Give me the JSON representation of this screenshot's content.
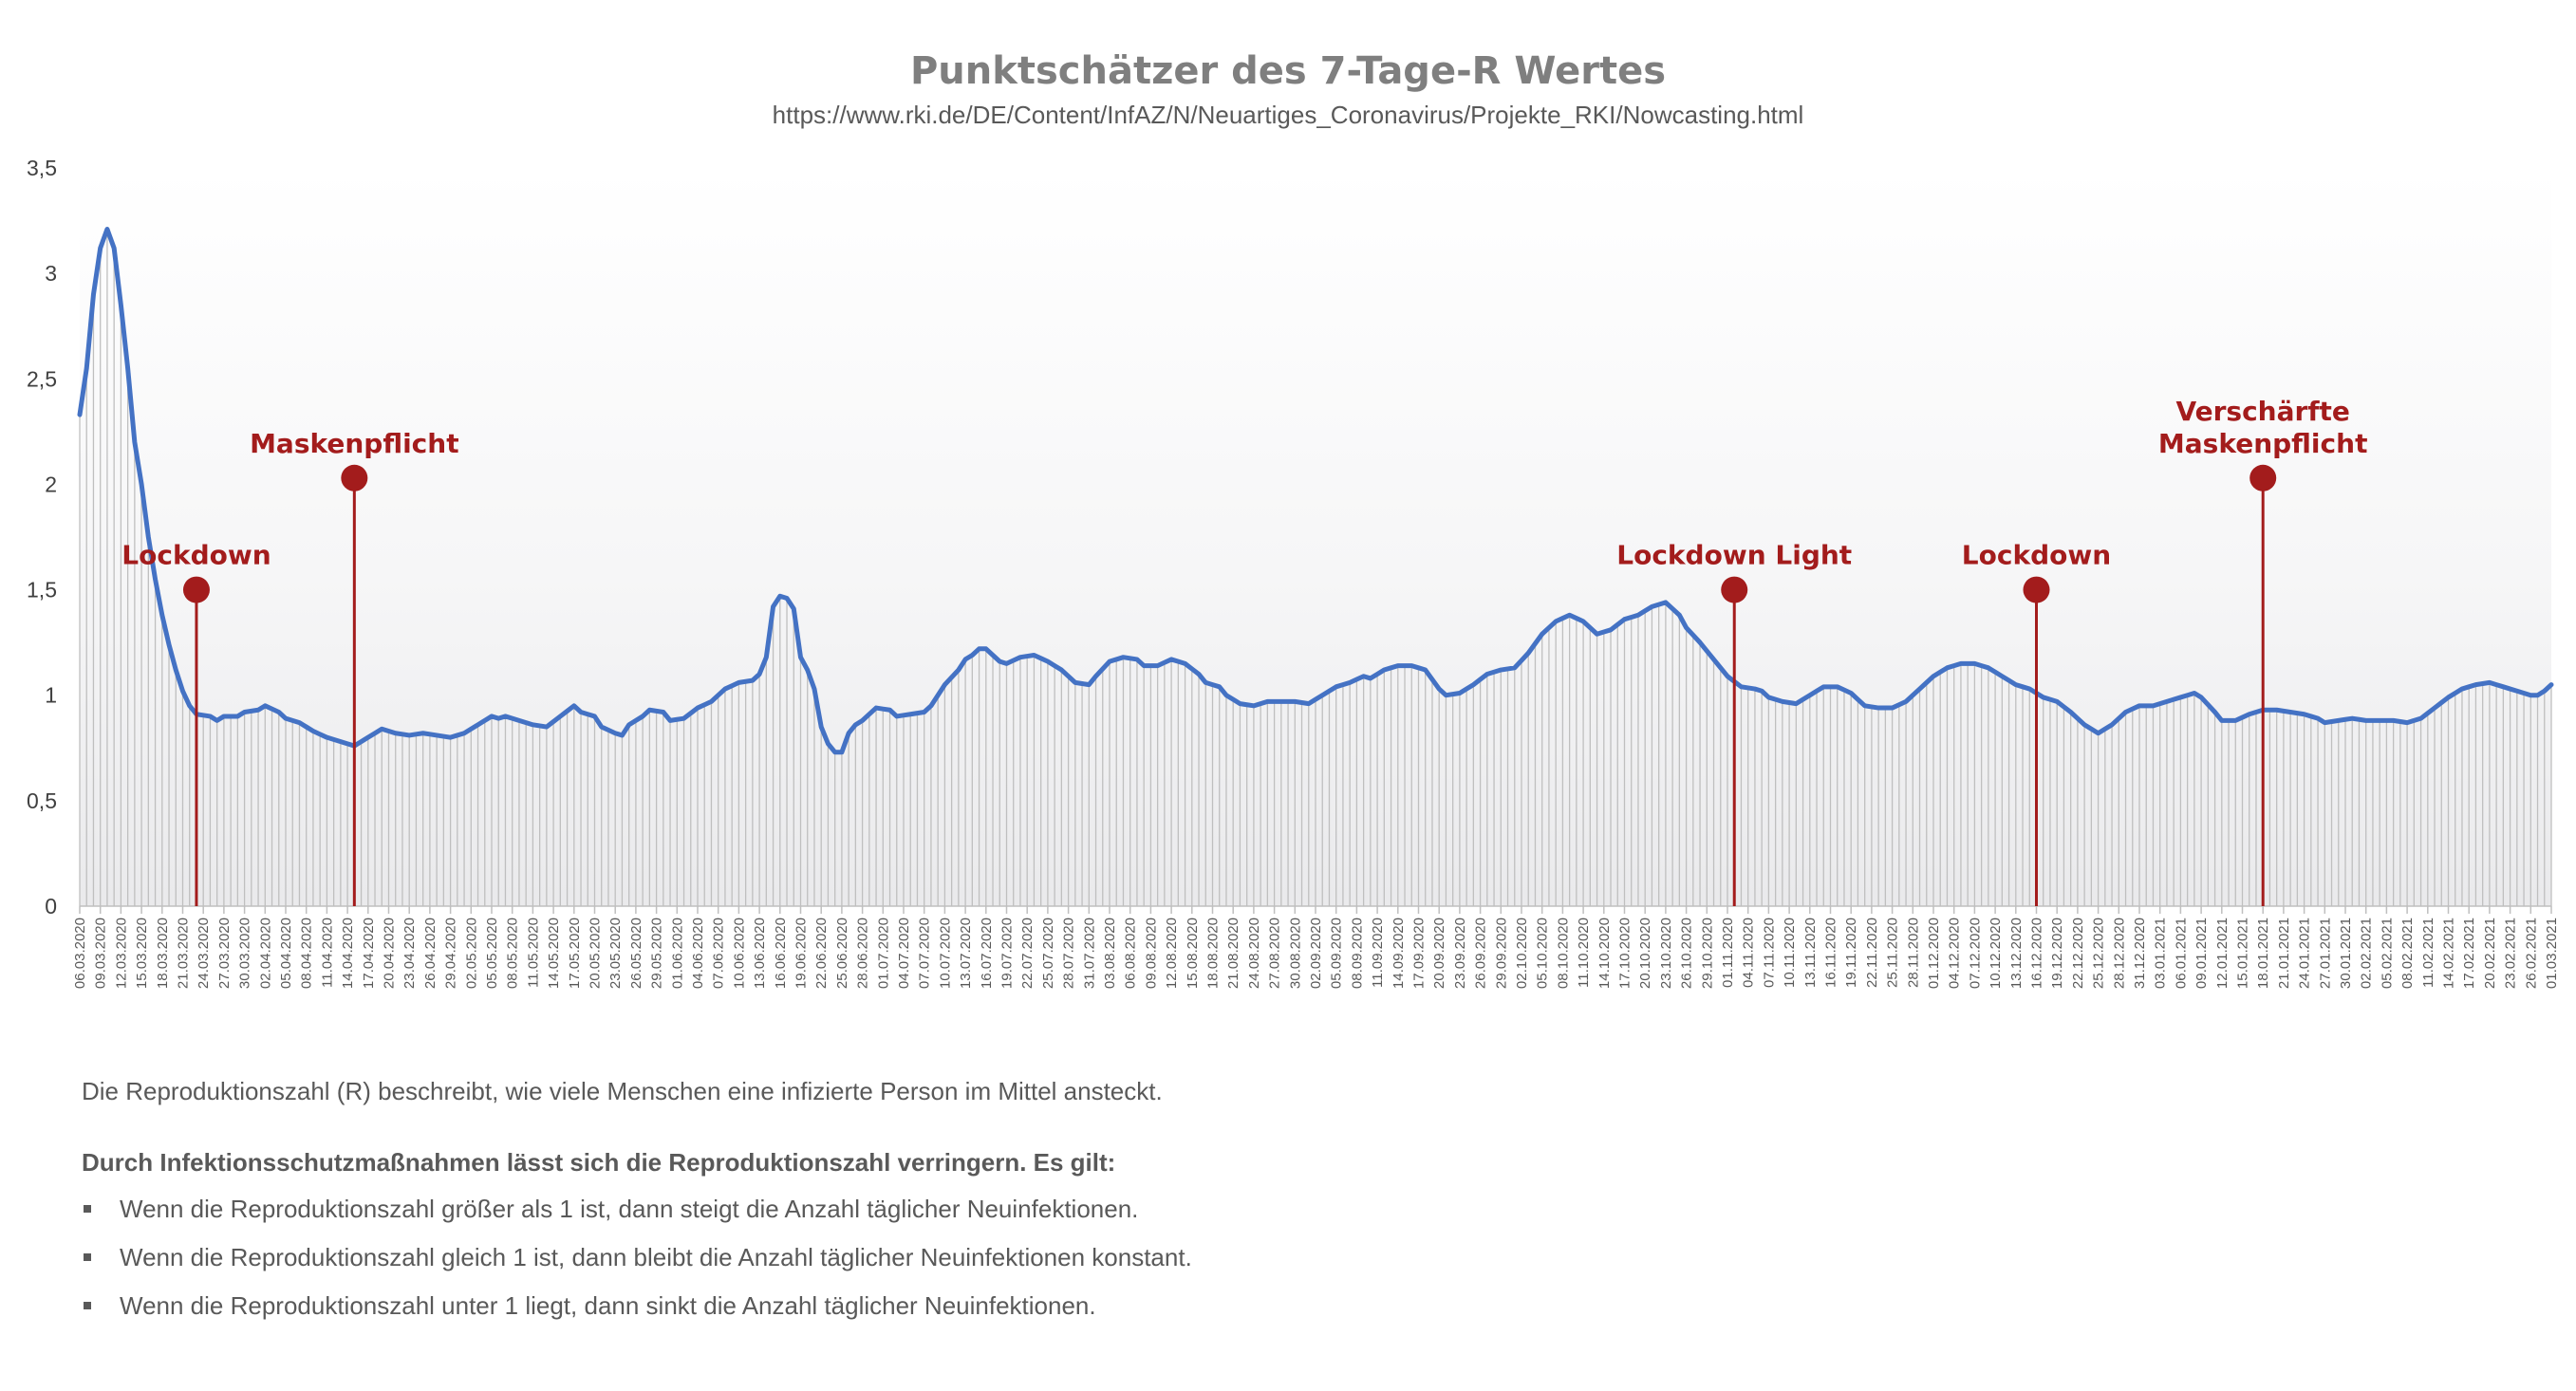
{
  "chart_data": {
    "type": "line",
    "title": "Punktschätzer des 7-Tage-R Wertes",
    "subtitle": "https://www.rki.de/DE/Content/InfAZ/N/Neuartiges_Coronavirus/Projekte_RKI/Nowcasting.html",
    "x_start": "06.03.2020",
    "x_end": "01.03.2021",
    "x_tick_labels": [
      "06.03.2020",
      "09.03.2020",
      "12.03.2020",
      "15.03.2020",
      "18.03.2020",
      "21.03.2020",
      "24.03.2020",
      "27.03.2020",
      "30.03.2020",
      "02.04.2020",
      "05.04.2020",
      "08.04.2020",
      "11.04.2020",
      "14.04.2020",
      "17.04.2020",
      "20.04.2020",
      "23.04.2020",
      "26.04.2020",
      "29.04.2020",
      "02.05.2020",
      "05.05.2020",
      "08.05.2020",
      "11.05.2020",
      "14.05.2020",
      "17.05.2020",
      "20.05.2020",
      "23.05.2020",
      "26.05.2020",
      "29.05.2020",
      "01.06.2020",
      "04.06.2020",
      "07.06.2020",
      "10.06.2020",
      "13.06.2020",
      "16.06.2020",
      "19.06.2020",
      "22.06.2020",
      "25.06.2020",
      "28.06.2020",
      "01.07.2020",
      "04.07.2020",
      "07.07.2020",
      "10.07.2020",
      "13.07.2020",
      "16.07.2020",
      "19.07.2020",
      "22.07.2020",
      "25.07.2020",
      "28.07.2020",
      "31.07.2020",
      "03.08.2020",
      "06.08.2020",
      "09.08.2020",
      "12.08.2020",
      "15.08.2020",
      "18.08.2020",
      "21.08.2020",
      "24.08.2020",
      "27.08.2020",
      "30.08.2020",
      "02.09.2020",
      "05.09.2020",
      "08.09.2020",
      "11.09.2020",
      "14.09.2020",
      "17.09.2020",
      "20.09.2020",
      "23.09.2020",
      "26.09.2020",
      "29.09.2020",
      "02.10.2020",
      "05.10.2020",
      "08.10.2020",
      "11.10.2020",
      "14.10.2020",
      "17.10.2020",
      "20.10.2020",
      "23.10.2020",
      "26.10.2020",
      "29.10.2020",
      "01.11.2020",
      "04.11.2020",
      "07.11.2020",
      "10.11.2020",
      "13.11.2020",
      "16.11.2020",
      "19.11.2020",
      "22.11.2020",
      "25.11.2020",
      "28.11.2020",
      "01.12.2020",
      "04.12.2020",
      "07.12.2020",
      "10.12.2020",
      "13.12.2020",
      "16.12.2020",
      "19.12.2020",
      "22.12.2020",
      "25.12.2020",
      "28.12.2020",
      "31.12.2020",
      "03.01.2021",
      "06.01.2021",
      "09.01.2021",
      "12.01.2021",
      "15.01.2021",
      "18.01.2021",
      "21.01.2021",
      "24.01.2021",
      "27.01.2021",
      "30.01.2021",
      "02.02.2021",
      "05.02.2021",
      "08.02.2021",
      "11.02.2021",
      "14.02.2021",
      "17.02.2021",
      "20.02.2021",
      "23.02.2021",
      "26.02.2021",
      "01.03.2021"
    ],
    "y_ticks": [
      "0",
      "0,5",
      "1",
      "1,5",
      "2",
      "2,5",
      "3",
      "3,5"
    ],
    "ylim": [
      0,
      3.5
    ],
    "series": [
      {
        "color": "#4472c4",
        "points": [
          [
            "06.03.2020",
            2.33
          ],
          [
            "07.03.2020",
            2.55
          ],
          [
            "08.03.2020",
            2.9
          ],
          [
            "09.03.2020",
            3.12
          ],
          [
            "10.03.2020",
            3.21
          ],
          [
            "11.03.2020",
            3.12
          ],
          [
            "12.03.2020",
            2.85
          ],
          [
            "13.03.2020",
            2.55
          ],
          [
            "14.03.2020",
            2.2
          ],
          [
            "15.03.2020",
            2.0
          ],
          [
            "16.03.2020",
            1.75
          ],
          [
            "17.03.2020",
            1.55
          ],
          [
            "18.03.2020",
            1.38
          ],
          [
            "19.03.2020",
            1.24
          ],
          [
            "20.03.2020",
            1.12
          ],
          [
            "21.03.2020",
            1.02
          ],
          [
            "22.03.2020",
            0.95
          ],
          [
            "23.03.2020",
            0.91
          ],
          [
            "25.03.2020",
            0.9
          ],
          [
            "26.03.2020",
            0.88
          ],
          [
            "27.03.2020",
            0.9
          ],
          [
            "29.03.2020",
            0.9
          ],
          [
            "30.03.2020",
            0.92
          ],
          [
            "01.04.2020",
            0.93
          ],
          [
            "02.04.2020",
            0.95
          ],
          [
            "04.04.2020",
            0.92
          ],
          [
            "05.04.2020",
            0.89
          ],
          [
            "07.04.2020",
            0.87
          ],
          [
            "09.04.2020",
            0.83
          ],
          [
            "11.04.2020",
            0.8
          ],
          [
            "13.04.2020",
            0.78
          ],
          [
            "14.04.2020",
            0.77
          ],
          [
            "15.04.2020",
            0.76
          ],
          [
            "17.04.2020",
            0.8
          ],
          [
            "19.04.2020",
            0.84
          ],
          [
            "21.04.2020",
            0.82
          ],
          [
            "23.04.2020",
            0.81
          ],
          [
            "25.04.2020",
            0.82
          ],
          [
            "27.04.2020",
            0.81
          ],
          [
            "29.04.2020",
            0.8
          ],
          [
            "01.05.2020",
            0.82
          ],
          [
            "03.05.2020",
            0.86
          ],
          [
            "05.05.2020",
            0.9
          ],
          [
            "06.05.2020",
            0.89
          ],
          [
            "07.05.2020",
            0.9
          ],
          [
            "09.05.2020",
            0.88
          ],
          [
            "11.05.2020",
            0.86
          ],
          [
            "13.05.2020",
            0.85
          ],
          [
            "15.05.2020",
            0.9
          ],
          [
            "17.05.2020",
            0.95
          ],
          [
            "18.05.2020",
            0.92
          ],
          [
            "20.05.2020",
            0.9
          ],
          [
            "21.05.2020",
            0.85
          ],
          [
            "23.05.2020",
            0.82
          ],
          [
            "24.05.2020",
            0.81
          ],
          [
            "25.05.2020",
            0.86
          ],
          [
            "27.05.2020",
            0.9
          ],
          [
            "28.05.2020",
            0.93
          ],
          [
            "30.05.2020",
            0.92
          ],
          [
            "31.05.2020",
            0.88
          ],
          [
            "02.06.2020",
            0.89
          ],
          [
            "04.06.2020",
            0.94
          ],
          [
            "06.06.2020",
            0.97
          ],
          [
            "08.06.2020",
            1.03
          ],
          [
            "10.06.2020",
            1.06
          ],
          [
            "12.06.2020",
            1.07
          ],
          [
            "13.06.2020",
            1.1
          ],
          [
            "14.06.2020",
            1.18
          ],
          [
            "15.06.2020",
            1.42
          ],
          [
            "16.06.2020",
            1.47
          ],
          [
            "17.06.2020",
            1.46
          ],
          [
            "18.06.2020",
            1.41
          ],
          [
            "19.06.2020",
            1.18
          ],
          [
            "20.06.2020",
            1.12
          ],
          [
            "21.06.2020",
            1.03
          ],
          [
            "22.06.2020",
            0.85
          ],
          [
            "23.06.2020",
            0.77
          ],
          [
            "24.06.2020",
            0.73
          ],
          [
            "25.06.2020",
            0.73
          ],
          [
            "26.06.2020",
            0.82
          ],
          [
            "27.06.2020",
            0.86
          ],
          [
            "28.06.2020",
            0.88
          ],
          [
            "30.06.2020",
            0.94
          ],
          [
            "02.07.2020",
            0.93
          ],
          [
            "03.07.2020",
            0.9
          ],
          [
            "05.07.2020",
            0.91
          ],
          [
            "07.07.2020",
            0.92
          ],
          [
            "08.07.2020",
            0.95
          ],
          [
            "10.07.2020",
            1.05
          ],
          [
            "12.07.2020",
            1.12
          ],
          [
            "13.07.2020",
            1.17
          ],
          [
            "14.07.2020",
            1.19
          ],
          [
            "15.07.2020",
            1.22
          ],
          [
            "16.07.2020",
            1.22
          ],
          [
            "18.07.2020",
            1.16
          ],
          [
            "19.07.2020",
            1.15
          ],
          [
            "21.07.2020",
            1.18
          ],
          [
            "23.07.2020",
            1.19
          ],
          [
            "25.07.2020",
            1.16
          ],
          [
            "27.07.2020",
            1.12
          ],
          [
            "29.07.2020",
            1.06
          ],
          [
            "31.07.2020",
            1.05
          ],
          [
            "01.08.2020",
            1.09
          ],
          [
            "03.08.2020",
            1.16
          ],
          [
            "05.08.2020",
            1.18
          ],
          [
            "07.08.2020",
            1.17
          ],
          [
            "08.08.2020",
            1.14
          ],
          [
            "10.08.2020",
            1.14
          ],
          [
            "12.08.2020",
            1.17
          ],
          [
            "14.08.2020",
            1.15
          ],
          [
            "16.08.2020",
            1.1
          ],
          [
            "17.08.2020",
            1.06
          ],
          [
            "19.08.2020",
            1.04
          ],
          [
            "20.08.2020",
            1.0
          ],
          [
            "22.08.2020",
            0.96
          ],
          [
            "24.08.2020",
            0.95
          ],
          [
            "26.08.2020",
            0.97
          ],
          [
            "28.08.2020",
            0.97
          ],
          [
            "30.08.2020",
            0.97
          ],
          [
            "01.09.2020",
            0.96
          ],
          [
            "03.09.2020",
            1.0
          ],
          [
            "05.09.2020",
            1.04
          ],
          [
            "07.09.2020",
            1.06
          ],
          [
            "09.09.2020",
            1.09
          ],
          [
            "10.09.2020",
            1.08
          ],
          [
            "12.09.2020",
            1.12
          ],
          [
            "14.09.2020",
            1.14
          ],
          [
            "16.09.2020",
            1.14
          ],
          [
            "18.09.2020",
            1.12
          ],
          [
            "20.09.2020",
            1.03
          ],
          [
            "21.09.2020",
            1.0
          ],
          [
            "23.09.2020",
            1.01
          ],
          [
            "25.09.2020",
            1.05
          ],
          [
            "27.09.2020",
            1.1
          ],
          [
            "29.09.2020",
            1.12
          ],
          [
            "01.10.2020",
            1.13
          ],
          [
            "03.10.2020",
            1.2
          ],
          [
            "05.10.2020",
            1.29
          ],
          [
            "07.10.2020",
            1.35
          ],
          [
            "09.10.2020",
            1.38
          ],
          [
            "11.10.2020",
            1.35
          ],
          [
            "13.10.2020",
            1.29
          ],
          [
            "15.10.2020",
            1.31
          ],
          [
            "17.10.2020",
            1.36
          ],
          [
            "19.10.2020",
            1.38
          ],
          [
            "21.10.2020",
            1.42
          ],
          [
            "23.10.2020",
            1.44
          ],
          [
            "25.10.2020",
            1.38
          ],
          [
            "26.10.2020",
            1.32
          ],
          [
            "28.10.2020",
            1.25
          ],
          [
            "30.10.2020",
            1.17
          ],
          [
            "01.11.2020",
            1.09
          ],
          [
            "03.11.2020",
            1.04
          ],
          [
            "05.11.2020",
            1.03
          ],
          [
            "06.11.2020",
            1.02
          ],
          [
            "07.11.2020",
            0.99
          ],
          [
            "09.11.2020",
            0.97
          ],
          [
            "11.11.2020",
            0.96
          ],
          [
            "13.11.2020",
            1.0
          ],
          [
            "15.11.2020",
            1.04
          ],
          [
            "17.11.2020",
            1.04
          ],
          [
            "19.11.2020",
            1.01
          ],
          [
            "21.11.2020",
            0.95
          ],
          [
            "23.11.2020",
            0.94
          ],
          [
            "25.11.2020",
            0.94
          ],
          [
            "27.11.2020",
            0.97
          ],
          [
            "29.11.2020",
            1.03
          ],
          [
            "01.12.2020",
            1.09
          ],
          [
            "03.12.2020",
            1.13
          ],
          [
            "05.12.2020",
            1.15
          ],
          [
            "07.12.2020",
            1.15
          ],
          [
            "09.12.2020",
            1.13
          ],
          [
            "11.12.2020",
            1.09
          ],
          [
            "13.12.2020",
            1.05
          ],
          [
            "15.12.2020",
            1.03
          ],
          [
            "17.12.2020",
            0.99
          ],
          [
            "19.12.2020",
            0.97
          ],
          [
            "21.12.2020",
            0.92
          ],
          [
            "23.12.2020",
            0.86
          ],
          [
            "24.12.2020",
            0.84
          ],
          [
            "25.12.2020",
            0.82
          ],
          [
            "27.12.2020",
            0.86
          ],
          [
            "29.12.2020",
            0.92
          ],
          [
            "31.12.2020",
            0.95
          ],
          [
            "02.01.2021",
            0.95
          ],
          [
            "04.01.2021",
            0.97
          ],
          [
            "06.01.2021",
            0.99
          ],
          [
            "08.01.2021",
            1.01
          ],
          [
            "09.01.2021",
            0.99
          ],
          [
            "11.01.2021",
            0.92
          ],
          [
            "12.01.2021",
            0.88
          ],
          [
            "14.01.2021",
            0.88
          ],
          [
            "16.01.2021",
            0.91
          ],
          [
            "18.01.2021",
            0.93
          ],
          [
            "20.01.2021",
            0.93
          ],
          [
            "22.01.2021",
            0.92
          ],
          [
            "24.01.2021",
            0.91
          ],
          [
            "26.01.2021",
            0.89
          ],
          [
            "27.01.2021",
            0.87
          ],
          [
            "29.01.2021",
            0.88
          ],
          [
            "31.01.2021",
            0.89
          ],
          [
            "02.02.2021",
            0.88
          ],
          [
            "04.02.2021",
            0.88
          ],
          [
            "06.02.2021",
            0.88
          ],
          [
            "08.02.2021",
            0.87
          ],
          [
            "10.02.2021",
            0.89
          ],
          [
            "12.02.2021",
            0.94
          ],
          [
            "14.02.2021",
            0.99
          ],
          [
            "16.02.2021",
            1.03
          ],
          [
            "18.02.2021",
            1.05
          ],
          [
            "20.02.2021",
            1.06
          ],
          [
            "22.02.2021",
            1.04
          ],
          [
            "24.02.2021",
            1.02
          ],
          [
            "26.02.2021",
            1.0
          ],
          [
            "27.02.2021",
            1.0
          ],
          [
            "28.02.2021",
            1.02
          ],
          [
            "01.03.2021",
            1.05
          ]
        ]
      }
    ],
    "annotations": [
      {
        "lines": [
          "Lockdown"
        ],
        "date": "23.03.2020",
        "y": 1.5
      },
      {
        "lines": [
          "Maskenpflicht"
        ],
        "date": "15.04.2020",
        "y": 2.03
      },
      {
        "lines": [
          "Lockdown Light"
        ],
        "date": "02.11.2020",
        "y": 1.5
      },
      {
        "lines": [
          "Lockdown"
        ],
        "date": "16.12.2020",
        "y": 1.5
      },
      {
        "lines": [
          "Verschärfte",
          "Maskenpflicht"
        ],
        "date": "18.01.2021",
        "y": 2.03
      }
    ],
    "annotation_color": "#a31c1c",
    "bar_color": "#bfbfbf",
    "grid": false,
    "legend": "none"
  },
  "notes": {
    "intro": "Die Reproduktionszahl (R) beschreibt, wie viele Menschen eine infizierte Person im Mittel ansteckt.",
    "heading": "Durch Infektionsschutzmaßnahmen lässt sich die Reproduktionszahl verringern. Es gilt:",
    "bullets": [
      "Wenn die Reproduktionszahl größer als 1 ist, dann steigt die Anzahl täglicher Neuinfektionen.",
      "Wenn die Reproduktionszahl gleich 1 ist, dann bleibt die Anzahl täglicher Neuinfektionen konstant.",
      "Wenn die Reproduktionszahl unter 1 liegt, dann sinkt die Anzahl täglicher Neuinfektionen."
    ]
  }
}
